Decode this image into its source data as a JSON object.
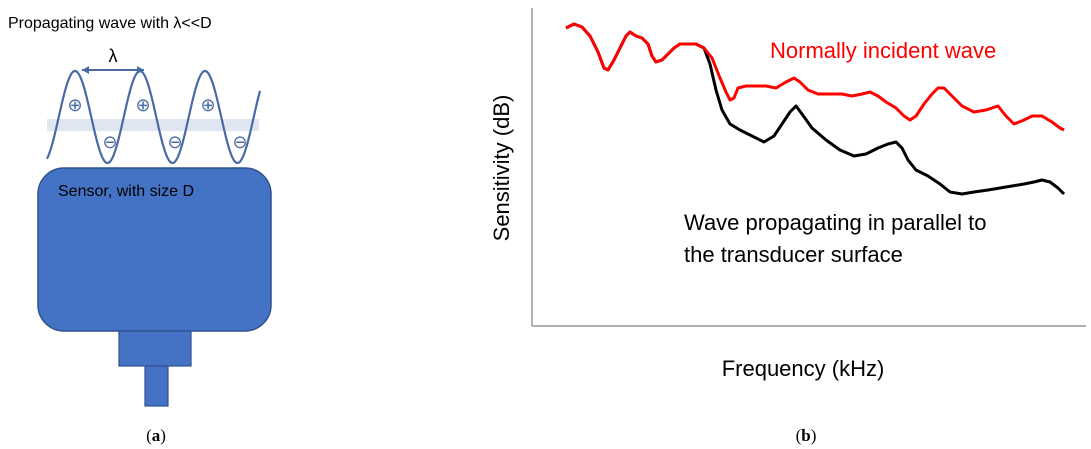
{
  "panel_a": {
    "title": "Propagating wave with λ<<D",
    "wavelength_label": "λ",
    "sensor_label": "Sensor, with size D",
    "plus_symbol": "⊕",
    "minus_symbol": "⊖",
    "caption_open": "(",
    "caption_letter": "a",
    "caption_close": ")",
    "colors": {
      "sensor": "#4472c4",
      "sensor_border": "#2f528f",
      "wave": "#4a6aa5",
      "wave_fill": "#dfe6f2"
    }
  },
  "panel_b": {
    "ylabel": "Sensitivity (dB)",
    "xlabel": "Frequency (kHz)",
    "normal_label": "Normally incident wave",
    "parallel_label_line1": "Wave propagating in parallel to",
    "parallel_label_line2": "the transducer surface",
    "caption_open": "(",
    "caption_letter": "b",
    "caption_close": ")",
    "colors": {
      "normal": "#ff0000",
      "parallel": "#000000"
    }
  }
}
